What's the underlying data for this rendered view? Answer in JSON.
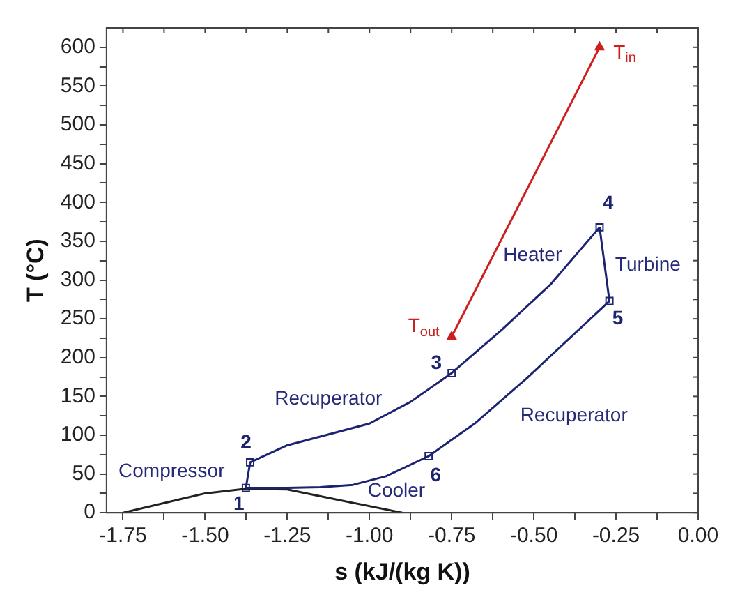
{
  "chart_data": {
    "type": "line",
    "xlabel": "s (kJ/(kg K))",
    "ylabel": "T (°C)",
    "xlim": [
      -1.8,
      0
    ],
    "ylim": [
      0,
      625
    ],
    "xticks": [
      -1.75,
      {
        "value": -1.625,
        "label": null
      },
      "-1.50",
      {
        "value": -1.375,
        "label": null
      },
      -1.25,
      {
        "value": -1.125,
        "label": null
      },
      "-1.00",
      {
        "value": -0.875,
        "label": null
      },
      -0.75,
      {
        "value": -0.625,
        "label": null
      },
      "-0.50",
      {
        "value": -0.375,
        "label": null
      },
      -0.25,
      {
        "value": -0.125,
        "label": null
      },
      "0.00"
    ],
    "yticks": [
      0,
      {
        "value": 25,
        "label": null
      },
      50,
      {
        "value": 75,
        "label": null
      },
      100,
      {
        "value": 125,
        "label": null
      },
      150,
      {
        "value": 175,
        "label": null
      },
      200,
      {
        "value": 225,
        "label": null
      },
      250,
      {
        "value": 275,
        "label": null
      },
      300,
      {
        "value": 325,
        "label": null
      },
      350,
      {
        "value": 375,
        "label": null
      },
      400,
      {
        "value": 425,
        "label": null
      },
      450,
      {
        "value": 475,
        "label": null
      },
      500,
      {
        "value": 525,
        "label": null
      },
      550,
      {
        "value": 575,
        "label": null
      },
      600
    ],
    "grid": false,
    "legend": false,
    "series": [
      {
        "type": "line",
        "color": "#1c2472",
        "marker": "none",
        "line_style": "solid",
        "x": [
          -1.376,
          -1.363,
          -1.25,
          -1.0,
          -0.875,
          -0.75,
          -0.6,
          -0.45,
          -0.3
        ],
        "values": [
          32,
          65,
          87,
          115,
          143,
          180,
          235,
          294,
          368
        ]
      },
      {
        "type": "line",
        "color": "#1c2472",
        "marker": "none",
        "line_style": "solid",
        "x": [
          -0.3,
          -0.27
        ],
        "values": [
          368,
          273
        ]
      },
      {
        "type": "line",
        "color": "#1c2472",
        "marker": "none",
        "line_style": "solid",
        "x": [
          -1.376,
          -1.25,
          -1.15,
          -1.05,
          -0.95,
          -0.82,
          -0.68,
          -0.52,
          -0.27
        ],
        "values": [
          32,
          32,
          33,
          36,
          47,
          73,
          115,
          174,
          273
        ]
      },
      {
        "color": "#222222",
        "marker": "none",
        "line_style": "solid",
        "x": [
          -1.75,
          -1.6,
          -1.5,
          -1.376,
          -1.25,
          -1.1,
          -0.9
        ],
        "values": [
          0,
          15,
          25,
          31,
          30,
          17,
          0
        ]
      },
      {
        "type": "line",
        "color": "#cc2020",
        "marker": "triangle",
        "line_style": "solid",
        "x": [
          -0.75,
          -0.3
        ],
        "values": [
          227,
          600
        ]
      },
      {
        "type": "scatter",
        "color": "#1c2472",
        "marker": "square",
        "x": [
          -1.376,
          -1.363,
          -0.75,
          -0.3,
          -0.27,
          -0.82
        ],
        "values": [
          32,
          65,
          180,
          368,
          273,
          73
        ]
      }
    ],
    "annotations": [
      {
        "text": "1",
        "x": -1.376,
        "y": 32
      },
      {
        "text": "2",
        "x": -1.363,
        "y": 65
      },
      {
        "text": "3",
        "x": -0.75,
        "y": 180
      },
      {
        "text": "4",
        "x": -0.3,
        "y": 368
      },
      {
        "text": "5",
        "x": -0.27,
        "y": 273
      },
      {
        "text": "6",
        "x": -0.82,
        "y": 73
      },
      {
        "text": "T$_{in}$",
        "x": -0.3,
        "y": 600
      },
      {
        "text": "T$_{out}$",
        "x": -0.75,
        "y": 227
      },
      "Heater",
      "Turbine",
      "Recuperator",
      "Recuperator",
      "Compressor",
      "Cooler"
    ]
  }
}
